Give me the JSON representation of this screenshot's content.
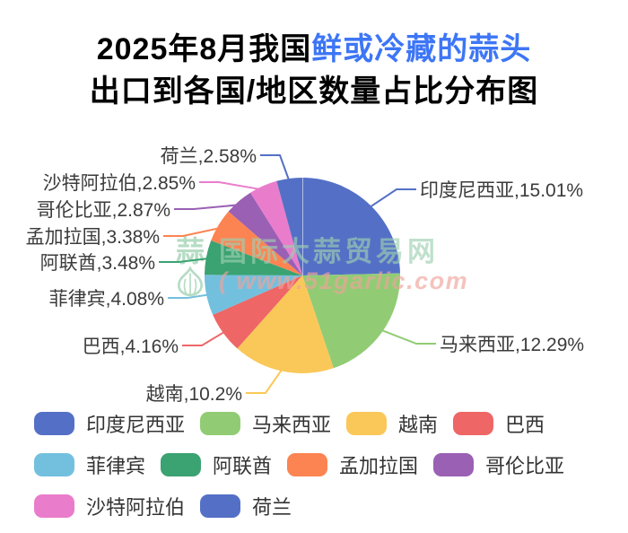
{
  "title": {
    "prefix": "2025年8月我国",
    "highlight": "鲜或冷藏的蒜头",
    "line2": "出口到各国/地区数量占比分布图",
    "accent_color": "#3D76F6",
    "text_color": "#000000"
  },
  "watermark": {
    "brand_char": "蒜",
    "site_name": "国际大蒜贸易网",
    "site_url": "( www.51garlic.com"
  },
  "chart_data": {
    "type": "pie",
    "title": "2025年8月我国鲜或冷藏的蒜头出口到各国/地区数量占比分布图",
    "unit": "%",
    "label_format": "{name},{value}%",
    "series": [
      {
        "name": "印度尼西亚",
        "value": 15.01,
        "color": "#5470c6"
      },
      {
        "name": "马来西亚",
        "value": 12.29,
        "color": "#91cc75"
      },
      {
        "name": "越南",
        "value": 10.2,
        "color": "#fac858"
      },
      {
        "name": "巴西",
        "value": 4.16,
        "color": "#ee6666"
      },
      {
        "name": "菲律宾",
        "value": 4.08,
        "color": "#73c0de"
      },
      {
        "name": "阿联酋",
        "value": 3.48,
        "color": "#3ba272"
      },
      {
        "name": "孟加拉国",
        "value": 3.38,
        "color": "#fc8452"
      },
      {
        "name": "哥伦比亚",
        "value": 2.87,
        "color": "#9a60b4"
      },
      {
        "name": "沙特阿拉伯",
        "value": 2.85,
        "color": "#ea7ccc"
      },
      {
        "name": "荷兰",
        "value": 2.58,
        "color": "#5470c6"
      }
    ],
    "label_text_color": "#3b3b3b",
    "legend_text_color": "#333333",
    "legend_position": "bottom-left",
    "grid": false
  }
}
